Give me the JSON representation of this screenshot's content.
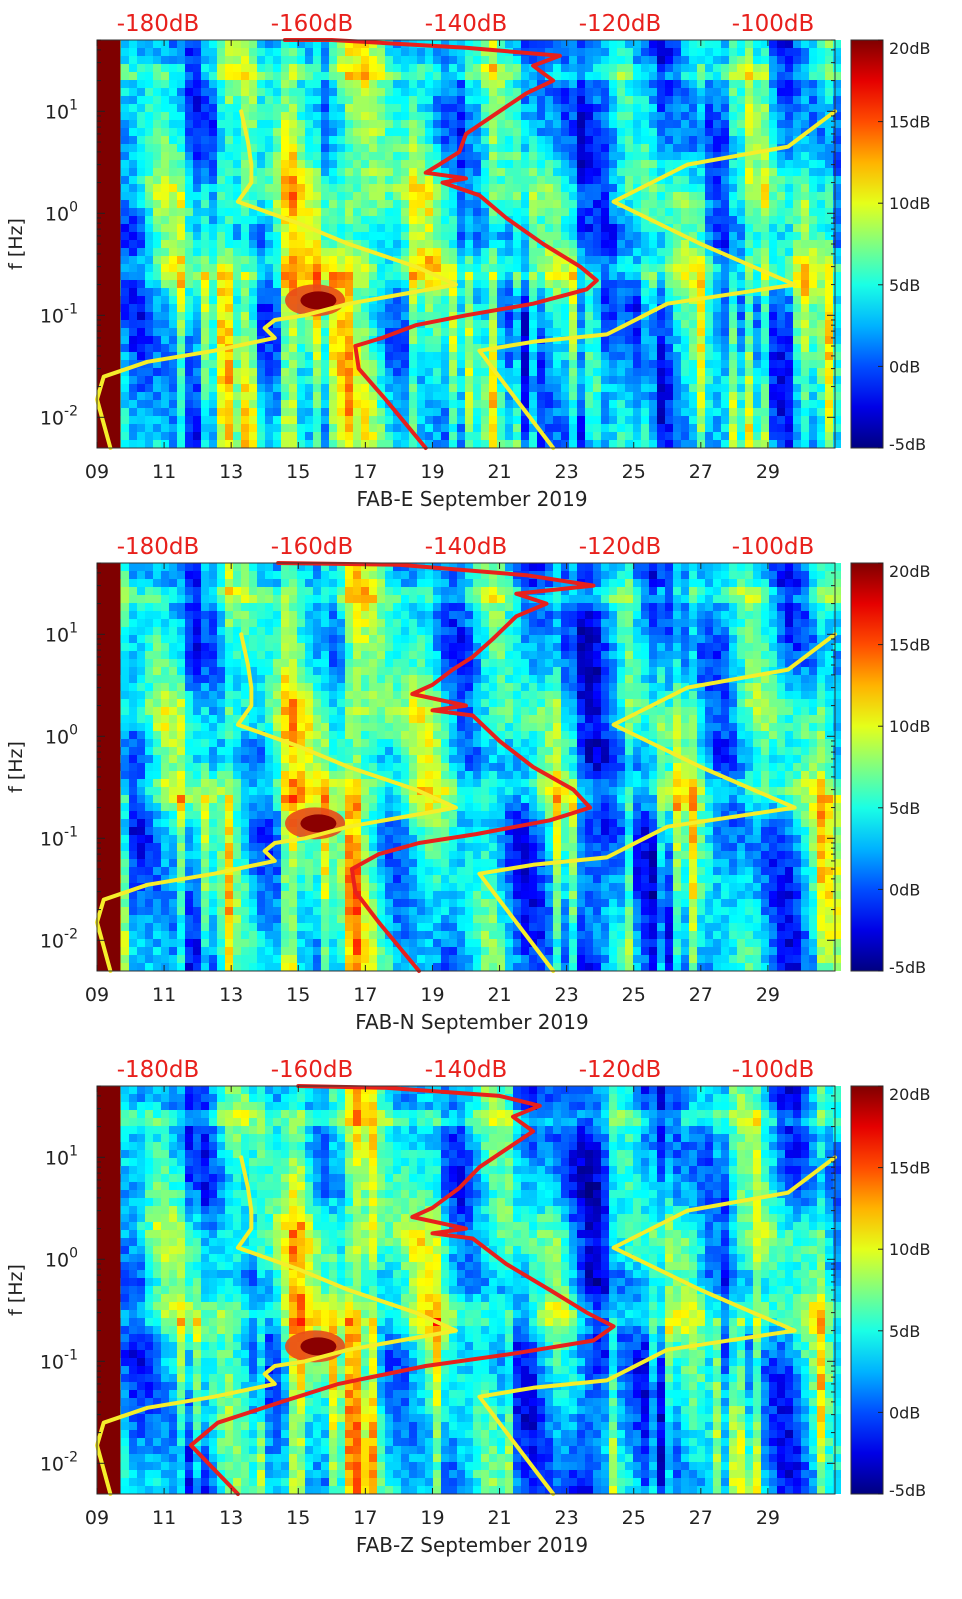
{
  "chart_data": [
    {
      "type": "heatmap",
      "title": "",
      "xlabel": "FAB-E September 2019",
      "ylabel": "f [Hz]",
      "x_tick_labels": [
        "09",
        "11",
        "13",
        "15",
        "17",
        "19",
        "21",
        "23",
        "25",
        "27",
        "29"
      ],
      "y_tick_labels": [
        "10-2",
        "10-1",
        "100",
        "101"
      ],
      "xlim": [
        9,
        31
      ],
      "ylim_hz": [
        0.005,
        50
      ],
      "top_axis_labels": [
        "-180dB",
        "-160dB",
        "-140dB",
        "-120dB",
        "-100dB"
      ],
      "colorbar_labels": [
        "20dB",
        "15dB",
        "10dB",
        "5dB",
        "0dB",
        "-5dB"
      ],
      "clim_db": [
        -5,
        20
      ],
      "series": [
        {
          "name": "noise model (yellow, left)",
          "color": "#f5ee2a",
          "points": [
            [
              9.4,
              0.005
            ],
            [
              9.0,
              0.015
            ],
            [
              9.2,
              0.025
            ],
            [
              10.5,
              0.035
            ],
            [
              12.5,
              0.045
            ],
            [
              14.3,
              0.06
            ],
            [
              14.0,
              0.075
            ],
            [
              14.3,
              0.09
            ],
            [
              15.2,
              0.1
            ],
            [
              16.5,
              0.13
            ],
            [
              19.7,
              0.2
            ],
            [
              18.5,
              0.3
            ],
            [
              16.5,
              0.5
            ],
            [
              15.0,
              0.8
            ],
            [
              13.2,
              1.3
            ],
            [
              13.6,
              2.0
            ],
            [
              13.6,
              3.0
            ],
            [
              13.5,
              5.0
            ],
            [
              13.3,
              10.0
            ]
          ]
        },
        {
          "name": "noise model (yellow, right)",
          "color": "#f5ee2a",
          "points": [
            [
              22.6,
              0.005
            ],
            [
              20.4,
              0.045
            ],
            [
              22.0,
              0.055
            ],
            [
              24.2,
              0.065
            ],
            [
              26.0,
              0.13
            ],
            [
              29.8,
              0.2
            ],
            [
              27.0,
              0.5
            ],
            [
              24.4,
              1.3
            ],
            [
              26.6,
              3.0
            ],
            [
              29.6,
              4.5
            ],
            [
              31.0,
              10.0
            ]
          ]
        },
        {
          "name": "median PSD (red)",
          "color": "#e8201c",
          "points": [
            [
              18.8,
              0.005
            ],
            [
              17.6,
              0.015
            ],
            [
              16.8,
              0.03
            ],
            [
              16.7,
              0.05
            ],
            [
              17.5,
              0.06
            ],
            [
              18.5,
              0.08
            ],
            [
              20.0,
              0.1
            ],
            [
              22.0,
              0.13
            ],
            [
              23.6,
              0.18
            ],
            [
              23.9,
              0.22
            ],
            [
              23.4,
              0.3
            ],
            [
              22.3,
              0.5
            ],
            [
              21.2,
              0.9
            ],
            [
              20.4,
              1.5
            ],
            [
              19.3,
              2.0
            ],
            [
              20.0,
              2.2
            ],
            [
              18.8,
              2.5
            ],
            [
              19.2,
              3.0
            ],
            [
              19.8,
              4.0
            ],
            [
              20.0,
              6.0
            ],
            [
              21.0,
              10.0
            ],
            [
              21.8,
              15.0
            ],
            [
              22.6,
              20.0
            ],
            [
              22.0,
              28.0
            ],
            [
              22.8,
              35.0
            ],
            [
              20.0,
              42.0
            ],
            [
              16.0,
              50.0
            ],
            [
              14.6,
              50.0
            ]
          ]
        }
      ]
    },
    {
      "type": "heatmap",
      "title": "",
      "xlabel": "FAB-N September 2019",
      "ylabel": "f [Hz]",
      "x_tick_labels": [
        "09",
        "11",
        "13",
        "15",
        "17",
        "19",
        "21",
        "23",
        "25",
        "27",
        "29"
      ],
      "y_tick_labels": [
        "10-2",
        "10-1",
        "100",
        "101"
      ],
      "xlim": [
        9,
        31
      ],
      "ylim_hz": [
        0.005,
        50
      ],
      "top_axis_labels": [
        "-180dB",
        "-160dB",
        "-140dB",
        "-120dB",
        "-100dB"
      ],
      "colorbar_labels": [
        "20dB",
        "15dB",
        "10dB",
        "5dB",
        "0dB",
        "-5dB"
      ],
      "clim_db": [
        -5,
        20
      ],
      "series": [
        {
          "name": "noise model (yellow, left)",
          "color": "#f5ee2a",
          "points": [
            [
              9.4,
              0.005
            ],
            [
              9.0,
              0.015
            ],
            [
              9.2,
              0.025
            ],
            [
              10.5,
              0.035
            ],
            [
              12.5,
              0.045
            ],
            [
              14.3,
              0.06
            ],
            [
              14.0,
              0.075
            ],
            [
              14.3,
              0.09
            ],
            [
              15.2,
              0.1
            ],
            [
              16.5,
              0.13
            ],
            [
              19.7,
              0.2
            ],
            [
              18.5,
              0.3
            ],
            [
              16.5,
              0.5
            ],
            [
              15.0,
              0.8
            ],
            [
              13.2,
              1.3
            ],
            [
              13.6,
              2.0
            ],
            [
              13.6,
              3.0
            ],
            [
              13.5,
              5.0
            ],
            [
              13.3,
              10.0
            ]
          ]
        },
        {
          "name": "noise model (yellow, right)",
          "color": "#f5ee2a",
          "points": [
            [
              22.6,
              0.005
            ],
            [
              20.4,
              0.045
            ],
            [
              22.0,
              0.055
            ],
            [
              24.2,
              0.065
            ],
            [
              26.0,
              0.13
            ],
            [
              29.8,
              0.2
            ],
            [
              27.0,
              0.5
            ],
            [
              24.4,
              1.3
            ],
            [
              26.6,
              3.0
            ],
            [
              29.6,
              4.5
            ],
            [
              31.0,
              10.0
            ]
          ]
        },
        {
          "name": "median PSD (red)",
          "color": "#e8201c",
          "points": [
            [
              18.6,
              0.005
            ],
            [
              17.4,
              0.015
            ],
            [
              16.7,
              0.03
            ],
            [
              16.6,
              0.05
            ],
            [
              17.4,
              0.07
            ],
            [
              18.6,
              0.09
            ],
            [
              20.3,
              0.11
            ],
            [
              22.5,
              0.15
            ],
            [
              23.7,
              0.2
            ],
            [
              23.2,
              0.3
            ],
            [
              22.0,
              0.5
            ],
            [
              21.0,
              0.9
            ],
            [
              20.2,
              1.6
            ],
            [
              19.0,
              1.8
            ],
            [
              20.0,
              2.0
            ],
            [
              18.4,
              2.6
            ],
            [
              19.0,
              3.2
            ],
            [
              19.6,
              4.5
            ],
            [
              20.2,
              6.0
            ],
            [
              20.8,
              9.0
            ],
            [
              21.5,
              15.0
            ],
            [
              22.4,
              20.0
            ],
            [
              21.5,
              25.0
            ],
            [
              23.8,
              30.0
            ],
            [
              21.8,
              38.0
            ],
            [
              18.0,
              48.0
            ],
            [
              14.4,
              50.0
            ]
          ]
        }
      ]
    },
    {
      "type": "heatmap",
      "title": "",
      "xlabel": "FAB-Z September 2019",
      "ylabel": "f [Hz]",
      "x_tick_labels": [
        "09",
        "11",
        "13",
        "15",
        "17",
        "19",
        "21",
        "23",
        "25",
        "27",
        "29"
      ],
      "y_tick_labels": [
        "10-2",
        "10-1",
        "100",
        "101"
      ],
      "xlim": [
        9,
        31
      ],
      "ylim_hz": [
        0.005,
        50
      ],
      "top_axis_labels": [
        "-180dB",
        "-160dB",
        "-140dB",
        "-120dB",
        "-100dB"
      ],
      "colorbar_labels": [
        "20dB",
        "15dB",
        "10dB",
        "5dB",
        "0dB",
        "-5dB"
      ],
      "clim_db": [
        -5,
        20
      ],
      "series": [
        {
          "name": "noise model (yellow, left)",
          "color": "#f5ee2a",
          "points": [
            [
              9.4,
              0.005
            ],
            [
              9.0,
              0.015
            ],
            [
              9.2,
              0.025
            ],
            [
              10.5,
              0.035
            ],
            [
              12.5,
              0.045
            ],
            [
              14.3,
              0.06
            ],
            [
              14.0,
              0.075
            ],
            [
              14.3,
              0.09
            ],
            [
              15.2,
              0.1
            ],
            [
              16.5,
              0.13
            ],
            [
              19.7,
              0.2
            ],
            [
              18.5,
              0.3
            ],
            [
              16.5,
              0.5
            ],
            [
              15.0,
              0.8
            ],
            [
              13.2,
              1.3
            ],
            [
              13.6,
              2.0
            ],
            [
              13.6,
              3.0
            ],
            [
              13.5,
              5.0
            ],
            [
              13.3,
              10.0
            ]
          ]
        },
        {
          "name": "noise model (yellow, right)",
          "color": "#f5ee2a",
          "points": [
            [
              22.6,
              0.005
            ],
            [
              20.4,
              0.045
            ],
            [
              22.0,
              0.055
            ],
            [
              24.2,
              0.065
            ],
            [
              26.0,
              0.13
            ],
            [
              29.8,
              0.2
            ],
            [
              27.0,
              0.5
            ],
            [
              24.4,
              1.3
            ],
            [
              26.6,
              3.0
            ],
            [
              29.6,
              4.5
            ],
            [
              31.0,
              10.0
            ]
          ]
        },
        {
          "name": "median PSD (red)",
          "color": "#e8201c",
          "points": [
            [
              13.2,
              0.005
            ],
            [
              11.8,
              0.015
            ],
            [
              12.6,
              0.025
            ],
            [
              14.5,
              0.04
            ],
            [
              16.2,
              0.06
            ],
            [
              18.8,
              0.09
            ],
            [
              21.5,
              0.12
            ],
            [
              23.8,
              0.16
            ],
            [
              24.4,
              0.22
            ],
            [
              23.6,
              0.3
            ],
            [
              22.5,
              0.5
            ],
            [
              21.2,
              0.9
            ],
            [
              20.2,
              1.6
            ],
            [
              19.0,
              1.8
            ],
            [
              20.0,
              2.0
            ],
            [
              18.4,
              2.6
            ],
            [
              19.0,
              3.2
            ],
            [
              19.8,
              5.0
            ],
            [
              20.4,
              8.0
            ],
            [
              21.2,
              12.0
            ],
            [
              22.0,
              18.0
            ],
            [
              21.4,
              25.0
            ],
            [
              22.2,
              32.0
            ],
            [
              21.0,
              40.0
            ],
            [
              17.6,
              48.0
            ],
            [
              15.0,
              50.0
            ]
          ]
        }
      ]
    }
  ]
}
